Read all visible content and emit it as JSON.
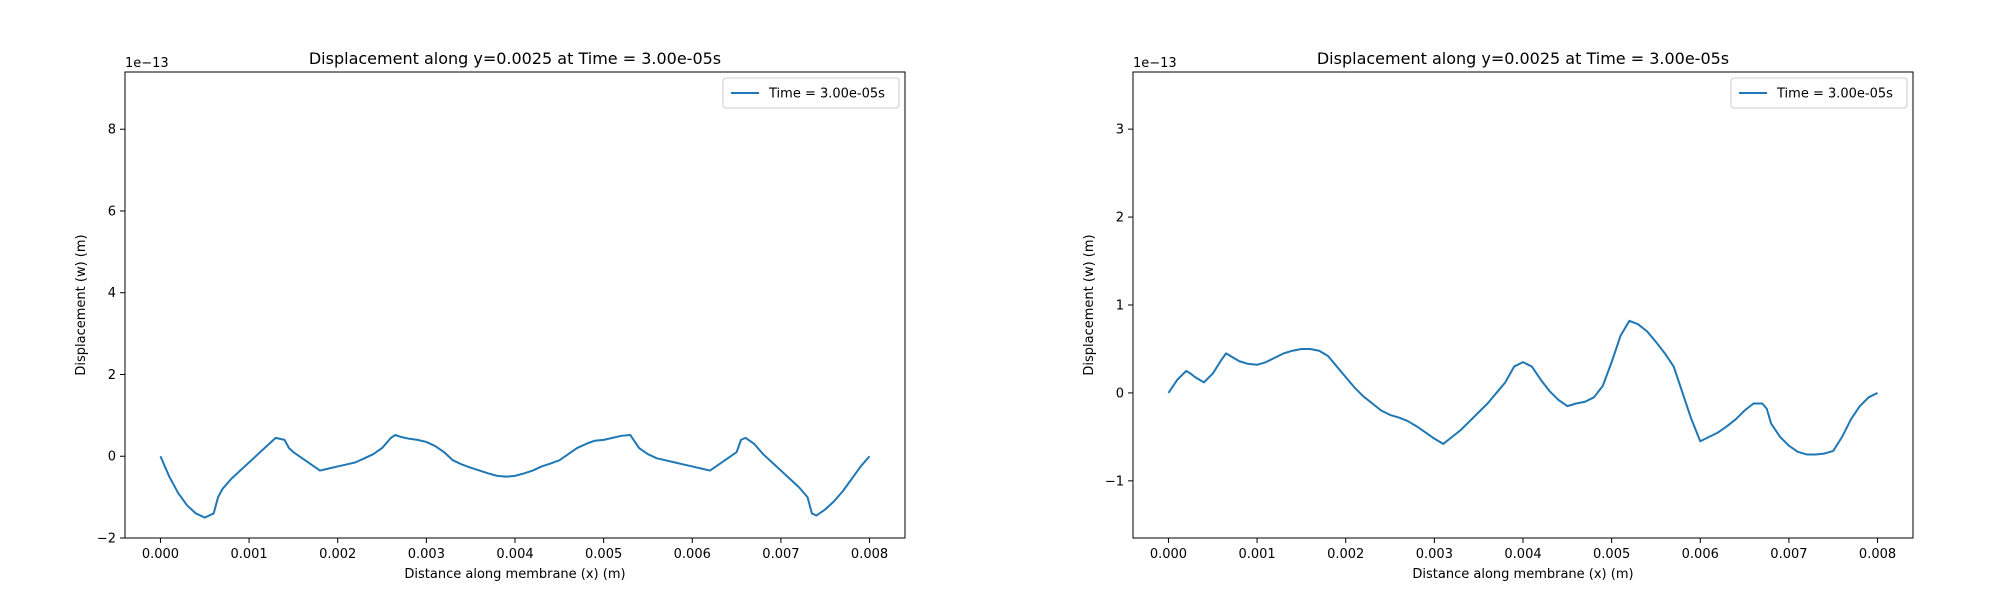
{
  "figure": {
    "background": "#ffffff"
  },
  "chart_data": [
    {
      "type": "line",
      "title": "Displacement along y=0.0025 at Time = 3.00e-05s",
      "xlabel": "Distance along membrane (x) (m)",
      "ylabel": "Displacement (w) (m)",
      "y_offset_label": "1e−13",
      "xlim": [
        -0.0004,
        0.0084
      ],
      "ylim": [
        -2,
        9.4
      ],
      "xticks": [
        0,
        0.001,
        0.002,
        0.003,
        0.004,
        0.005,
        0.006,
        0.007,
        0.008
      ],
      "xtick_labels": [
        "0.000",
        "0.001",
        "0.002",
        "0.003",
        "0.004",
        "0.005",
        "0.006",
        "0.007",
        "0.008"
      ],
      "yticks": [
        -2,
        0,
        2,
        4,
        6,
        8
      ],
      "ytick_labels": [
        "−2",
        "0",
        "2",
        "4",
        "6",
        "8"
      ],
      "legend": {
        "position": "upper right",
        "entries": [
          "Time = 3.00e-05s"
        ]
      },
      "grid": false,
      "series": [
        {
          "name": "Time = 3.00e-05s",
          "color": "#1f77b4",
          "x": [
            0,
            0.0001,
            0.0002,
            0.0003,
            0.0004,
            0.0005,
            0.0006,
            0.00065,
            0.0007,
            0.0008,
            0.0009,
            0.001,
            0.0011,
            0.0012,
            0.0013,
            0.0014,
            0.00145,
            0.0015,
            0.0016,
            0.0017,
            0.0018,
            0.0019,
            0.002,
            0.0021,
            0.0022,
            0.0023,
            0.0024,
            0.0025,
            0.0026,
            0.00265,
            0.0027,
            0.0028,
            0.0029,
            0.003,
            0.0031,
            0.0032,
            0.0033,
            0.0034,
            0.0035,
            0.0036,
            0.0037,
            0.0038,
            0.0039,
            0.004,
            0.0041,
            0.0042,
            0.0043,
            0.0044,
            0.0045,
            0.0046,
            0.0047,
            0.0048,
            0.0049,
            0.005,
            0.0051,
            0.0052,
            0.0053,
            0.0054,
            0.0055,
            0.0056,
            0.0057,
            0.0058,
            0.0059,
            0.006,
            0.0061,
            0.0062,
            0.0063,
            0.0064,
            0.0065,
            0.00655,
            0.0066,
            0.0067,
            0.0068,
            0.0069,
            0.007,
            0.0071,
            0.0072,
            0.0073,
            0.00735,
            0.0074,
            0.0075,
            0.0076,
            0.0077,
            0.0078,
            0.0079,
            0.008
          ],
          "y": [
            0,
            -0.5,
            -0.9,
            -1.2,
            -1.4,
            -1.5,
            -1.4,
            -1.0,
            -0.8,
            -0.55,
            -0.35,
            -0.15,
            0.05,
            0.25,
            0.45,
            0.4,
            0.2,
            0.1,
            -0.05,
            -0.2,
            -0.35,
            -0.3,
            -0.25,
            -0.2,
            -0.15,
            -0.05,
            0.05,
            0.2,
            0.45,
            0.52,
            0.48,
            0.43,
            0.4,
            0.35,
            0.25,
            0.1,
            -0.1,
            -0.2,
            -0.28,
            -0.35,
            -0.42,
            -0.48,
            -0.5,
            -0.48,
            -0.42,
            -0.35,
            -0.25,
            -0.18,
            -0.1,
            0.05,
            0.2,
            0.3,
            0.38,
            0.4,
            0.45,
            0.5,
            0.52,
            0.2,
            0.05,
            -0.05,
            -0.1,
            -0.15,
            -0.2,
            -0.25,
            -0.3,
            -0.35,
            -0.2,
            -0.05,
            0.1,
            0.4,
            0.45,
            0.3,
            0.05,
            -0.15,
            -0.35,
            -0.55,
            -0.75,
            -1.0,
            -1.4,
            -1.45,
            -1.3,
            -1.1,
            -0.85,
            -0.55,
            -0.25,
            0
          ]
        }
      ]
    },
    {
      "type": "line",
      "title": "Displacement along y=0.0025 at Time = 3.00e-05s",
      "xlabel": "Distance along membrane (x) (m)",
      "ylabel": "Displacement (w) (m)",
      "y_offset_label": "1e−13",
      "xlim": [
        -0.0004,
        0.0084
      ],
      "ylim": [
        -1.65,
        3.65
      ],
      "xticks": [
        0,
        0.001,
        0.002,
        0.003,
        0.004,
        0.005,
        0.006,
        0.007,
        0.008
      ],
      "xtick_labels": [
        "0.000",
        "0.001",
        "0.002",
        "0.003",
        "0.004",
        "0.005",
        "0.006",
        "0.007",
        "0.008"
      ],
      "yticks": [
        -1,
        0,
        1,
        2,
        3
      ],
      "ytick_labels": [
        "−1",
        "0",
        "1",
        "2",
        "3"
      ],
      "legend": {
        "position": "upper right",
        "entries": [
          "Time = 3.00e-05s"
        ]
      },
      "grid": false,
      "series": [
        {
          "name": "Time = 3.00e-05s",
          "color": "#1f77b4",
          "x": [
            0,
            0.0001,
            0.0002,
            0.00025,
            0.0003,
            0.0004,
            0.0005,
            0.0006,
            0.00065,
            0.0007,
            0.0008,
            0.0009,
            0.001,
            0.0011,
            0.0012,
            0.0013,
            0.0014,
            0.0015,
            0.0016,
            0.0017,
            0.0018,
            0.0019,
            0.002,
            0.0021,
            0.0022,
            0.0023,
            0.0024,
            0.0025,
            0.0026,
            0.0027,
            0.0028,
            0.0029,
            0.003,
            0.0031,
            0.0032,
            0.0033,
            0.0034,
            0.0035,
            0.0036,
            0.0037,
            0.0038,
            0.0039,
            0.004,
            0.0041,
            0.0042,
            0.0043,
            0.0044,
            0.0045,
            0.0046,
            0.0047,
            0.0048,
            0.0049,
            0.005,
            0.0051,
            0.0052,
            0.0053,
            0.0054,
            0.0055,
            0.0056,
            0.0057,
            0.0058,
            0.0059,
            0.006,
            0.0061,
            0.0062,
            0.0063,
            0.0064,
            0.0065,
            0.0066,
            0.0067,
            0.00675,
            0.0068,
            0.0069,
            0.007,
            0.0071,
            0.0072,
            0.0073,
            0.0074,
            0.0075,
            0.0076,
            0.0077,
            0.0078,
            0.0079,
            0.008
          ],
          "y": [
            0,
            0.15,
            0.25,
            0.22,
            0.18,
            0.12,
            0.22,
            0.38,
            0.45,
            0.42,
            0.36,
            0.33,
            0.32,
            0.35,
            0.4,
            0.45,
            0.48,
            0.5,
            0.5,
            0.48,
            0.42,
            0.3,
            0.18,
            0.06,
            -0.04,
            -0.12,
            -0.2,
            -0.25,
            -0.28,
            -0.32,
            -0.38,
            -0.45,
            -0.52,
            -0.58,
            -0.5,
            -0.42,
            -0.32,
            -0.22,
            -0.12,
            0.0,
            0.12,
            0.3,
            0.35,
            0.3,
            0.15,
            0.02,
            -0.08,
            -0.15,
            -0.12,
            -0.1,
            -0.05,
            0.08,
            0.35,
            0.65,
            0.82,
            0.78,
            0.7,
            0.58,
            0.45,
            0.3,
            0.0,
            -0.3,
            -0.55,
            -0.5,
            -0.45,
            -0.38,
            -0.3,
            -0.2,
            -0.12,
            -0.12,
            -0.18,
            -0.35,
            -0.5,
            -0.6,
            -0.67,
            -0.7,
            -0.7,
            -0.69,
            -0.66,
            -0.5,
            -0.3,
            -0.15,
            -0.05,
            0
          ]
        }
      ]
    }
  ]
}
